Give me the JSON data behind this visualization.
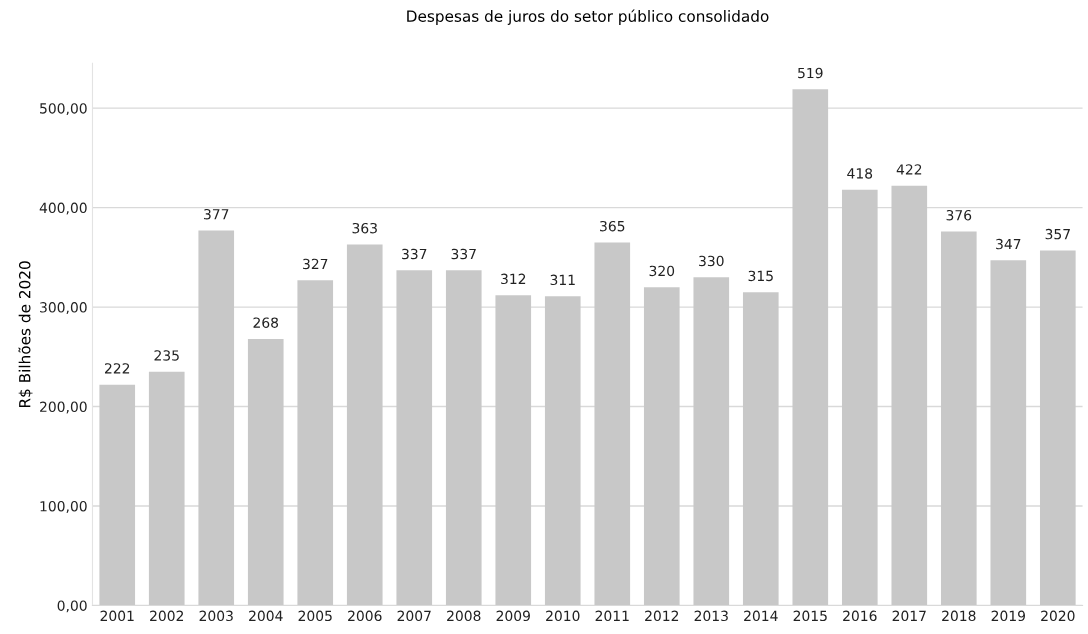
{
  "chart_data": {
    "type": "bar",
    "title": "Despesas de juros do setor público consolidado",
    "ylabel": "R$ Bilhões de 2020",
    "categories": [
      "2001",
      "2002",
      "2003",
      "2004",
      "2005",
      "2006",
      "2007",
      "2008",
      "2009",
      "2010",
      "2011",
      "2012",
      "2013",
      "2014",
      "2015",
      "2016",
      "2017",
      "2018",
      "2019",
      "2020"
    ],
    "values": [
      222,
      235,
      377,
      268,
      327,
      363,
      337,
      337,
      312,
      311,
      365,
      320,
      330,
      315,
      519,
      418,
      422,
      376,
      347,
      357
    ],
    "color": "#c8c8c8",
    "data_labels": true,
    "grid": "y",
    "legend": false,
    "ylim": [
      0,
      545
    ],
    "yticks": [
      {
        "value": 0,
        "label": "0,00"
      },
      {
        "value": 100,
        "label": "100,00"
      },
      {
        "value": 200,
        "label": "200,00"
      },
      {
        "value": 300,
        "label": "300,00"
      },
      {
        "value": 400,
        "label": "400,00"
      },
      {
        "value": 500,
        "label": "500,00"
      }
    ]
  }
}
